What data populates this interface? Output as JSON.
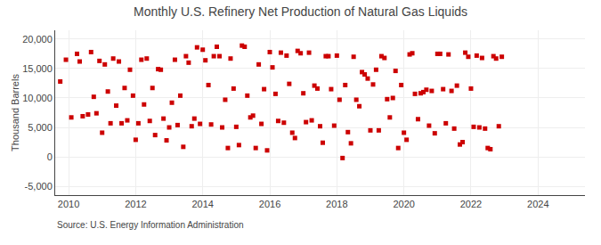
{
  "chart_data": {
    "type": "scatter",
    "title": "Monthly U.S. Refinery Net Production of Natural Gas Liquids",
    "ylabel": "Thousand Barrels",
    "annotations": [
      "Source: U.S. Energy Information Administration"
    ],
    "color": "#cc0000",
    "marker": "square",
    "grid": true,
    "xlim": [
      2009.6,
      2025.4
    ],
    "ylim": [
      -6500,
      21500
    ],
    "xticks": [
      2010,
      2012,
      2014,
      2016,
      2018,
      2020,
      2022,
      2024
    ],
    "yticks": [
      {
        "value": -5000,
        "label": "-5,000"
      },
      0,
      {
        "value": 5000,
        "label": "5,000"
      },
      {
        "value": 10000,
        "label": "10,000"
      },
      {
        "value": 15000,
        "label": "15,000"
      },
      {
        "value": 20000,
        "label": "20,000"
      }
    ],
    "x": [
      2009.75,
      2009.92,
      2010.08,
      2010.25,
      2010.33,
      2010.42,
      2010.58,
      2010.67,
      2010.75,
      2010.83,
      2010.92,
      2011.0,
      2011.08,
      2011.17,
      2011.25,
      2011.33,
      2011.42,
      2011.5,
      2011.58,
      2011.67,
      2011.75,
      2011.83,
      2011.92,
      2012.0,
      2012.08,
      2012.17,
      2012.25,
      2012.33,
      2012.42,
      2012.5,
      2012.58,
      2012.67,
      2012.75,
      2012.83,
      2012.92,
      2013.0,
      2013.08,
      2013.17,
      2013.25,
      2013.33,
      2013.42,
      2013.5,
      2013.58,
      2013.67,
      2013.75,
      2013.83,
      2013.92,
      2014.0,
      2014.08,
      2014.17,
      2014.25,
      2014.33,
      2014.42,
      2014.5,
      2014.58,
      2014.67,
      2014.75,
      2014.83,
      2014.92,
      2015.0,
      2015.08,
      2015.17,
      2015.25,
      2015.33,
      2015.42,
      2015.5,
      2015.58,
      2015.67,
      2015.75,
      2015.83,
      2015.92,
      2016.0,
      2016.08,
      2016.17,
      2016.25,
      2016.33,
      2016.42,
      2016.5,
      2016.58,
      2016.67,
      2016.75,
      2016.83,
      2016.92,
      2017.0,
      2017.08,
      2017.17,
      2017.25,
      2017.33,
      2017.42,
      2017.5,
      2017.58,
      2017.67,
      2017.75,
      2017.83,
      2017.92,
      2018.0,
      2018.08,
      2018.17,
      2018.25,
      2018.33,
      2018.42,
      2018.5,
      2018.58,
      2018.67,
      2018.75,
      2018.83,
      2018.92,
      2019.0,
      2019.08,
      2019.17,
      2019.25,
      2019.33,
      2019.42,
      2019.5,
      2019.58,
      2019.67,
      2019.75,
      2019.83,
      2019.92,
      2020.0,
      2020.08,
      2020.17,
      2020.25,
      2020.33,
      2020.42,
      2020.5,
      2020.58,
      2020.67,
      2020.75,
      2020.83,
      2020.92,
      2021.0,
      2021.08,
      2021.17,
      2021.25,
      2021.33,
      2021.42,
      2021.5,
      2021.58,
      2021.67,
      2021.75,
      2021.83,
      2021.92,
      2022.0,
      2022.08,
      2022.17,
      2022.25,
      2022.33,
      2022.42,
      2022.5,
      2022.58,
      2022.67,
      2022.75,
      2022.83,
      2022.92
    ],
    "values": [
      12800,
      16500,
      6700,
      17500,
      16200,
      6900,
      7200,
      17800,
      10200,
      7400,
      16300,
      4100,
      15700,
      11100,
      5700,
      16700,
      8700,
      16200,
      5700,
      11700,
      6200,
      14800,
      10400,
      2900,
      5700,
      16500,
      8900,
      16700,
      6100,
      11700,
      3700,
      14900,
      14800,
      6500,
      2800,
      5000,
      9200,
      16500,
      5400,
      10400,
      1700,
      17100,
      16000,
      5200,
      6500,
      18600,
      5600,
      18200,
      16400,
      12200,
      5500,
      17100,
      18700,
      17100,
      5000,
      9700,
      1500,
      16700,
      11600,
      5100,
      2000,
      18900,
      18700,
      10400,
      6700,
      7000,
      1500,
      15700,
      5600,
      11500,
      1100,
      17800,
      15200,
      10700,
      6100,
      17700,
      5800,
      17200,
      12400,
      4100,
      3200,
      18000,
      17600,
      10800,
      5900,
      17700,
      6200,
      12100,
      11600,
      5200,
      2400,
      17100,
      17100,
      11500,
      5300,
      17200,
      9700,
      -200,
      12200,
      4200,
      2300,
      17000,
      9700,
      8600,
      14400,
      14000,
      13300,
      4500,
      12300,
      14800,
      4500,
      17100,
      16800,
      9800,
      6700,
      10000,
      14600,
      1500,
      12200,
      4100,
      2900,
      17400,
      17600,
      10700,
      6400,
      10800,
      11000,
      11400,
      5300,
      11200,
      4000,
      17500,
      17500,
      11500,
      5700,
      17400,
      11200,
      4800,
      12100,
      2100,
      2500,
      17700,
      17000,
      11600,
      5100,
      17200,
      5000,
      16800,
      4800,
      1500,
      1300,
      17100,
      16700,
      5200,
      17000
    ]
  }
}
